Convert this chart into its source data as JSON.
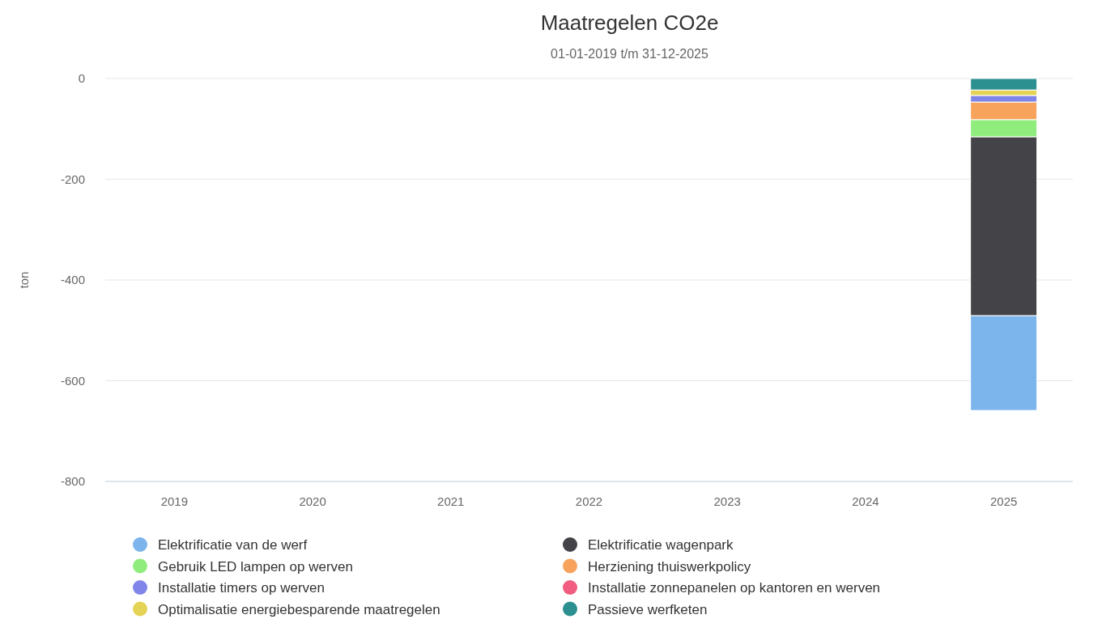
{
  "chart_data": {
    "type": "bar",
    "title": "Maatregelen CO2e",
    "subtitle": "01-01-2019 t/m 31-12-2025",
    "ylabel": "ton",
    "stacked": true,
    "categories": [
      "2019",
      "2020",
      "2021",
      "2022",
      "2023",
      "2024",
      "2025"
    ],
    "series": [
      {
        "name": "Passieve werfketen",
        "color": "#2b908f",
        "values": [
          null,
          null,
          null,
          null,
          null,
          null,
          -23
        ]
      },
      {
        "name": "Optimalisatie energiebesparende maatregelen",
        "color": "#e4d354",
        "values": [
          null,
          null,
          null,
          null,
          null,
          null,
          -11
        ]
      },
      {
        "name": "Installatie zonnepanelen op kantoren en werven",
        "color": "#f15c80",
        "values": [
          null,
          null,
          null,
          null,
          null,
          null,
          0
        ]
      },
      {
        "name": "Installatie timers op werven",
        "color": "#8085e9",
        "values": [
          null,
          null,
          null,
          null,
          null,
          null,
          -13
        ]
      },
      {
        "name": "Herziening thuiswerkpolicy",
        "color": "#f7a35c",
        "values": [
          null,
          null,
          null,
          null,
          null,
          null,
          -35
        ]
      },
      {
        "name": "Gebruik LED lampen op werven",
        "color": "#90ed7d",
        "values": [
          null,
          null,
          null,
          null,
          null,
          null,
          -34
        ]
      },
      {
        "name": "Elektrificatie wagenpark",
        "color": "#434348",
        "values": [
          null,
          null,
          null,
          null,
          null,
          null,
          -355
        ]
      },
      {
        "name": "Elektrificatie van de werf",
        "color": "#7cb5ec",
        "values": [
          null,
          null,
          null,
          null,
          null,
          null,
          -188
        ]
      }
    ],
    "ylim": [
      -800,
      0
    ],
    "yticks": [
      -800,
      -600,
      -400,
      -200,
      0
    ],
    "grid": "y",
    "legend": "bottom"
  }
}
